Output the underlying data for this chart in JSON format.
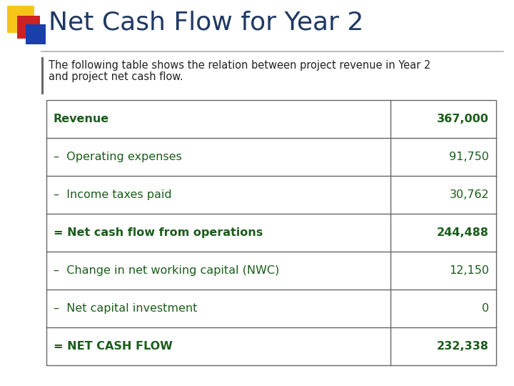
{
  "title": "Net Cash Flow for Year 2",
  "subtitle_line1": "The following table shows the relation between project revenue in Year 2",
  "subtitle_line2": "and project net cash flow.",
  "bg_color": "#ffffff",
  "title_color": "#1F3864",
  "title_fontsize": 26,
  "subtitle_fontsize": 10.5,
  "table_rows": [
    {
      "label": "Revenue",
      "value": "367,000",
      "bold": true,
      "prefix": ""
    },
    {
      "label": "Operating expenses",
      "value": "91,750",
      "bold": false,
      "prefix": "–  "
    },
    {
      "label": "Income taxes paid",
      "value": "30,762",
      "bold": false,
      "prefix": "–  "
    },
    {
      "label": "Net cash flow from operations",
      "value": "244,488",
      "bold": true,
      "prefix": "= "
    },
    {
      "label": "Change in net working capital (NWC)",
      "value": "12,150",
      "bold": false,
      "prefix": "–  "
    },
    {
      "label": "Net capital investment",
      "value": "0",
      "bold": false,
      "prefix": "–  "
    },
    {
      "label": "NET CASH FLOW",
      "value": "232,338",
      "bold": true,
      "prefix": "= "
    }
  ],
  "table_text_color": "#1a5c1a",
  "table_border_color": "#666666",
  "table_bg_color": "#ffffff",
  "accent_yellow": "#f5c518",
  "accent_red": "#cc2222",
  "accent_blue": "#1a3faa",
  "divider_color": "#b0b0b0",
  "left_bar_color": "#666666",
  "table_font_size": 11.5
}
